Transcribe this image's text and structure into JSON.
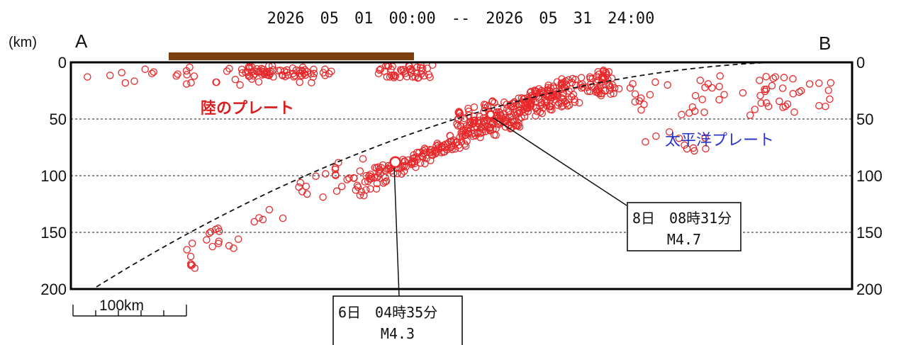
{
  "chart_data": {
    "type": "scatter",
    "title": "2026　05　01　00:00　--　2026　05　31　24:00",
    "y_unit_label": "(km)",
    "section_start_label": "A",
    "section_end_label": "B",
    "ylim": [
      0,
      200
    ],
    "y_ticks": [
      "0",
      "50",
      "100",
      "150",
      "200"
    ],
    "scale_bar_label": "100km",
    "annotations": {
      "continental_plate": "陸のプレート",
      "pacific_plate": "太平洋プレート"
    },
    "colors": {
      "hypocenter": "#e8282a",
      "land_bar": "#7b3f10",
      "continental_label": "#d81e1e",
      "pacific_label": "#2b35c8"
    },
    "highlighted_events": [
      {
        "day_time": "8日　08時31分",
        "magnitude": "M4.7",
        "distance_km": 370,
        "depth_km": 46
      },
      {
        "day_time": "6日　04時35分",
        "magnitude": "M4.3",
        "distance_km": 286,
        "depth_km": 88
      }
    ]
  }
}
